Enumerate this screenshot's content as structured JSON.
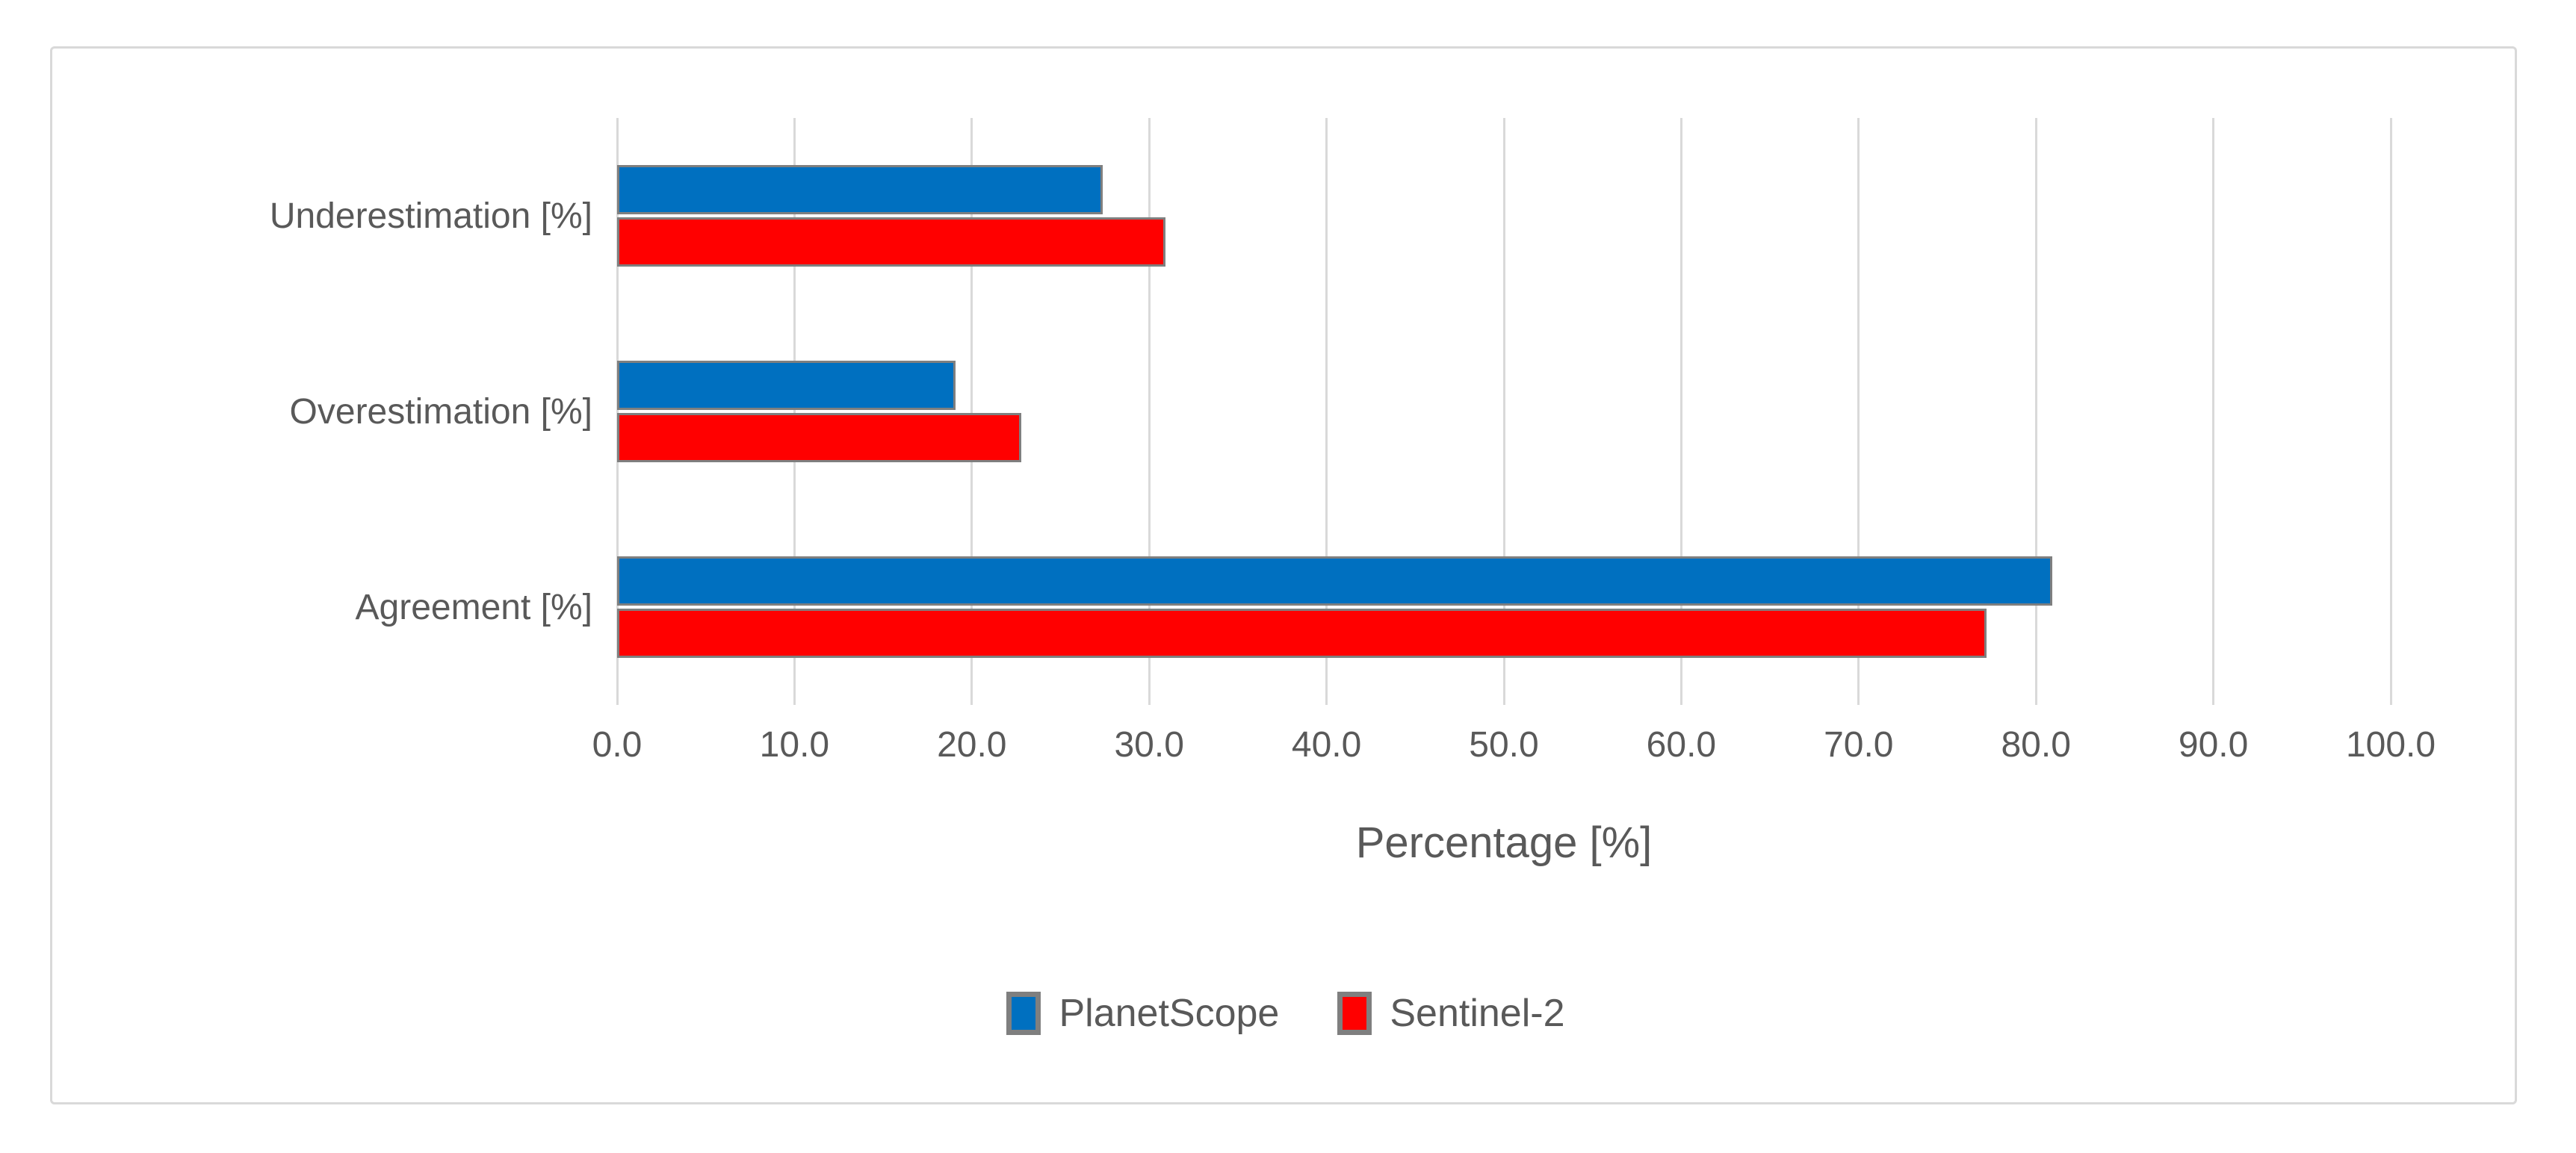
{
  "figure": {
    "background": "#FFFFFF",
    "border_color": "#D9D9D9"
  },
  "chart_data": {
    "type": "bar",
    "orientation": "horizontal",
    "title": "",
    "categories": [
      "Underestimation [%]",
      "Overestimation [%]",
      "Agreement [%]"
    ],
    "series": [
      {
        "name": "PlanetScope",
        "color": "#0070C0",
        "values": [
          27.4,
          19.1,
          80.9
        ]
      },
      {
        "name": "Sentinel-2",
        "color": "#FF0000",
        "values": [
          30.9,
          22.8,
          77.2
        ]
      }
    ],
    "xlabel": "Percentage [%]",
    "ylabel": "",
    "xlim": [
      0,
      100
    ],
    "x_tick_step": 10,
    "x_tick_labels": [
      "0.0",
      "10.0",
      "20.0",
      "30.0",
      "40.0",
      "50.0",
      "60.0",
      "70.0",
      "80.0",
      "90.0",
      "100.0"
    ],
    "grid": "vertical-major",
    "gridline_color": "#D9D9D9",
    "bar_border_color": "#7F7F7F",
    "text_color": "#595959",
    "legend_position": "bottom"
  }
}
